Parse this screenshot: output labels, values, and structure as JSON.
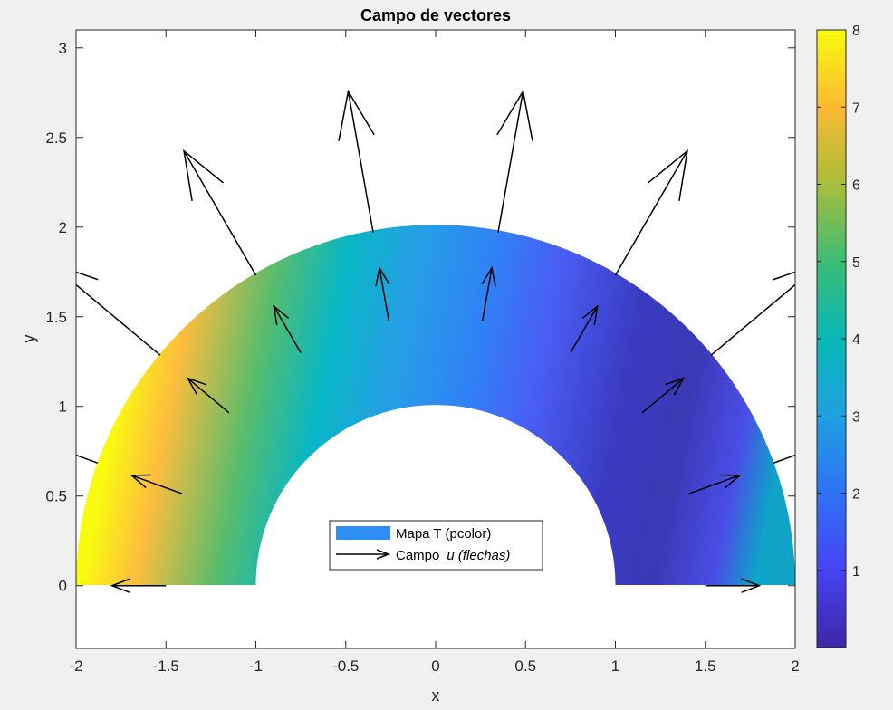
{
  "chart_data": {
    "type": "quiver",
    "title": "Campo de vectores",
    "xlabel": "x",
    "ylabel": "y",
    "xlim": [
      -2,
      2
    ],
    "ylim": [
      -0.35,
      3.1
    ],
    "xticks": [
      -2,
      -1.5,
      -1,
      -0.5,
      0,
      0.5,
      1,
      1.5,
      2
    ],
    "xtick_labels": [
      "-2",
      "-1.5",
      "-1",
      "-0.5",
      "0",
      "0.5",
      "1",
      "1.5",
      "2"
    ],
    "yticks": [
      0,
      0.5,
      1,
      1.5,
      2,
      2.5,
      3
    ],
    "ytick_labels": [
      "0",
      "0.5",
      "1",
      "1.5",
      "2",
      "2.5",
      "3"
    ],
    "domain": {
      "shape": "half-annulus",
      "r_inner": 1,
      "r_outer": 2
    },
    "colorbar": {
      "min": 0,
      "max": 8,
      "ticks": [
        1,
        2,
        3,
        4,
        5,
        6,
        7,
        8
      ],
      "tick_labels": [
        "1",
        "2",
        "3",
        "4",
        "5",
        "6",
        "7",
        "8"
      ],
      "colormap": "parula"
    },
    "legend": {
      "placement": "lower-center",
      "entries": [
        {
          "label": "Mapa T (pcolor)",
          "type": "patch",
          "color": "#2f8ff5"
        },
        {
          "label_plain": "Campo",
          "label_italic": "u (flechas)",
          "type": "arrow",
          "color": "#000000"
        }
      ]
    },
    "arrow_angles_deg": [
      0,
      20,
      40,
      60,
      80,
      100,
      120,
      140,
      160,
      180
    ],
    "series": [
      {
        "radius": 1.5,
        "length": 0.3
      },
      {
        "radius": 2.0,
        "length": 0.8
      }
    ]
  }
}
